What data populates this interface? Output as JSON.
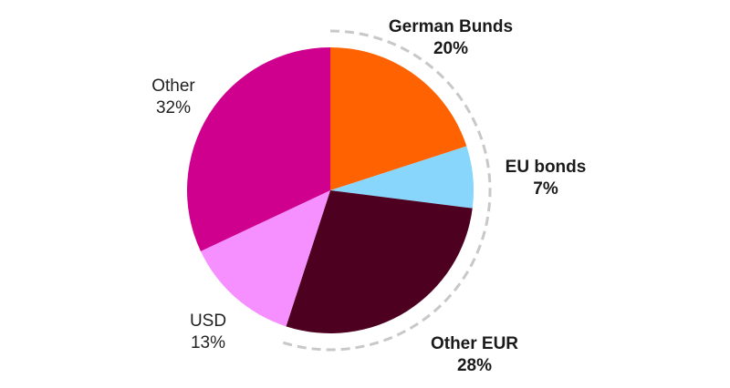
{
  "chart_data": {
    "type": "pie",
    "title": "",
    "slices": [
      {
        "name": "German Bunds",
        "value": 20,
        "label": "20%",
        "color": "#FF6200",
        "emphasized": true
      },
      {
        "name": "EU bonds",
        "value": 7,
        "label": "7%",
        "color": "#89D6FD",
        "emphasized": true
      },
      {
        "name": "Other EUR",
        "value": 28,
        "label": "28%",
        "color": "#4D0020",
        "emphasized": true
      },
      {
        "name": "USD",
        "value": 13,
        "label": "13%",
        "color": "#F68FFF",
        "emphasized": false
      },
      {
        "name": "Other",
        "value": 32,
        "label": "32%",
        "color": "#D0008F",
        "emphasized": false
      }
    ],
    "start_angle_deg": 0,
    "direction": "clockwise",
    "highlight_bracket": "dashed grey arc around EUR-denominated slices (German Bunds, EU bonds, Other EUR)"
  }
}
